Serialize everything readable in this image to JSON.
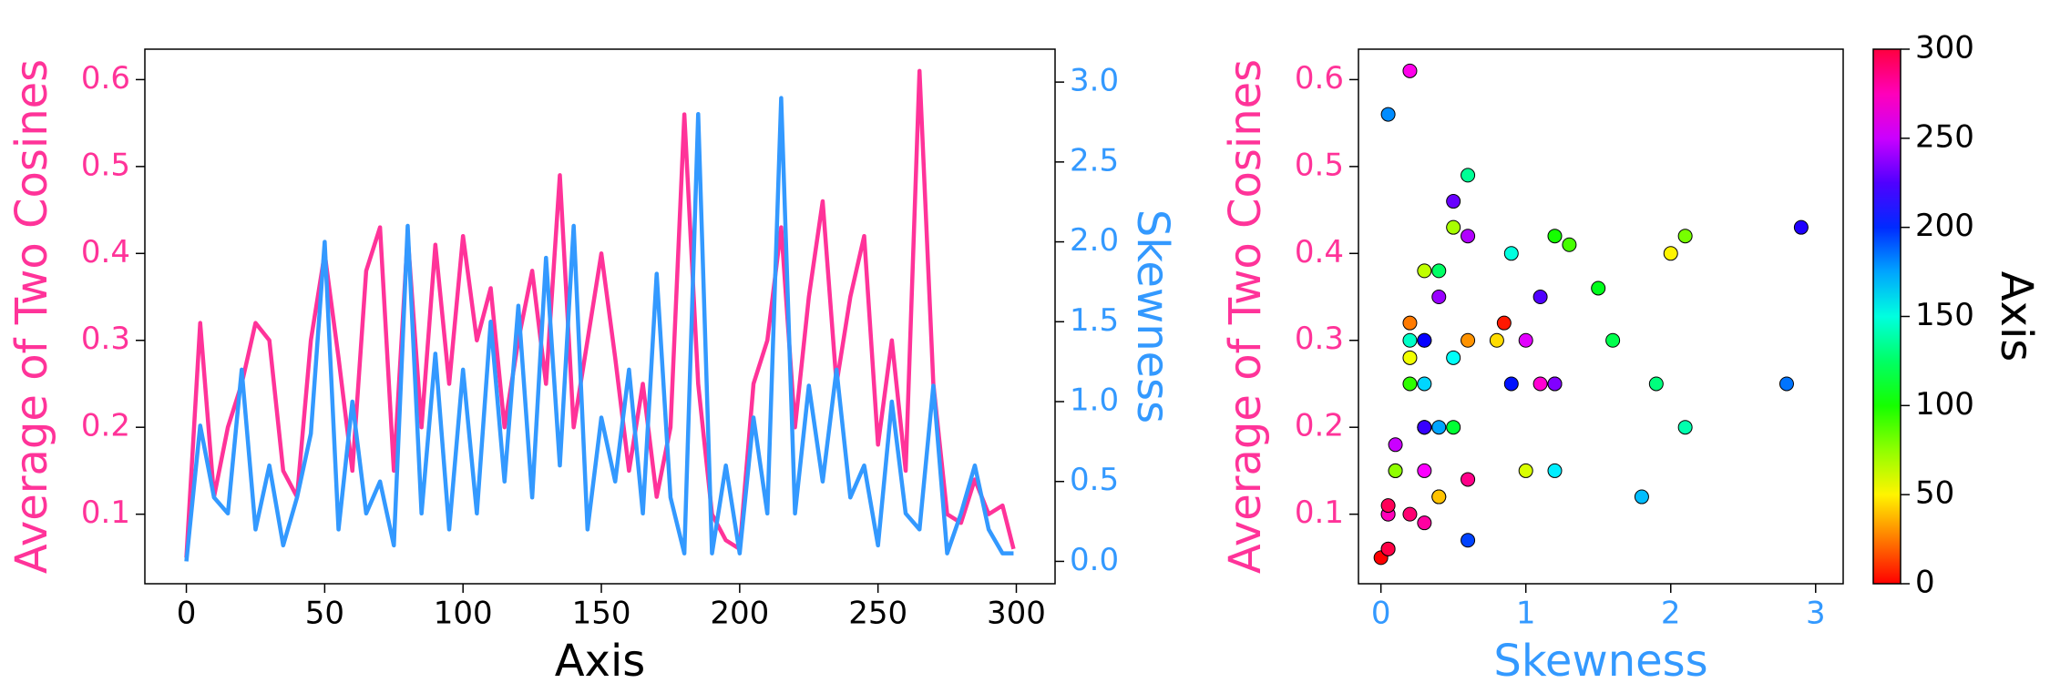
{
  "chart_data": [
    {
      "type": "line",
      "xlabel": "Axis",
      "ylabel": "Average of Two Cosines",
      "y2label": "Skewness",
      "x": [
        0,
        5,
        10,
        15,
        20,
        25,
        30,
        35,
        40,
        45,
        50,
        55,
        60,
        65,
        70,
        75,
        80,
        85,
        90,
        95,
        100,
        105,
        110,
        115,
        120,
        125,
        130,
        135,
        140,
        145,
        150,
        155,
        160,
        165,
        170,
        175,
        180,
        185,
        190,
        195,
        200,
        205,
        210,
        215,
        220,
        225,
        230,
        235,
        240,
        245,
        250,
        255,
        260,
        265,
        270,
        275,
        280,
        285,
        290,
        295,
        299
      ],
      "series": [
        {
          "name": "Average of Two Cosines",
          "color": "#ff3399",
          "axis": "y",
          "values": [
            0.05,
            0.32,
            0.12,
            0.2,
            0.25,
            0.32,
            0.3,
            0.15,
            0.12,
            0.3,
            0.4,
            0.28,
            0.15,
            0.38,
            0.43,
            0.15,
            0.42,
            0.2,
            0.41,
            0.25,
            0.42,
            0.3,
            0.36,
            0.2,
            0.3,
            0.38,
            0.25,
            0.49,
            0.2,
            0.3,
            0.4,
            0.28,
            0.15,
            0.25,
            0.12,
            0.2,
            0.56,
            0.25,
            0.1,
            0.07,
            0.06,
            0.25,
            0.3,
            0.43,
            0.2,
            0.35,
            0.46,
            0.25,
            0.35,
            0.42,
            0.18,
            0.3,
            0.15,
            0.61,
            0.25,
            0.1,
            0.09,
            0.14,
            0.1,
            0.11,
            0.06
          ]
        },
        {
          "name": "Skewness",
          "color": "#3399ff",
          "axis": "y2",
          "values": [
            0.0,
            0.85,
            0.4,
            0.3,
            1.2,
            0.2,
            0.6,
            0.1,
            0.4,
            0.8,
            2.0,
            0.2,
            1.0,
            0.3,
            0.5,
            0.1,
            2.1,
            0.3,
            1.3,
            0.2,
            1.2,
            0.3,
            1.5,
            0.5,
            1.6,
            0.4,
            1.9,
            0.6,
            2.1,
            0.2,
            0.9,
            0.5,
            1.2,
            0.3,
            1.8,
            0.4,
            0.05,
            2.8,
            0.05,
            0.6,
            0.05,
            0.9,
            0.3,
            2.9,
            0.3,
            1.1,
            0.5,
            1.2,
            0.4,
            0.6,
            0.1,
            1.0,
            0.3,
            0.2,
            1.1,
            0.05,
            0.3,
            0.6,
            0.2,
            0.05,
            0.05
          ]
        }
      ],
      "xlim": [
        -15,
        314
      ],
      "xticks": [
        0,
        50,
        100,
        150,
        200,
        250,
        300
      ],
      "ylim": [
        0.02,
        0.635
      ],
      "yticks": [
        0.1,
        0.2,
        0.3,
        0.4,
        0.5,
        0.6
      ],
      "y2lim": [
        -0.14,
        3.206
      ],
      "y2ticks": [
        {
          "value": 0,
          "label": "0.0"
        },
        0.5,
        {
          "value": 1,
          "label": "1.0"
        },
        1.5,
        {
          "value": 2,
          "label": "2.0"
        },
        2.5,
        {
          "value": 3,
          "label": "3.0"
        }
      ]
    },
    {
      "type": "scatter",
      "xlabel": "Skewness",
      "ylabel": "Average of Two Cosines",
      "x": [
        0.0,
        0.85,
        0.4,
        0.3,
        1.2,
        0.2,
        0.6,
        0.1,
        0.4,
        0.8,
        2.0,
        0.2,
        1.0,
        0.3,
        0.5,
        0.1,
        2.1,
        0.3,
        1.3,
        0.2,
        1.2,
        0.3,
        1.5,
        0.5,
        1.6,
        0.4,
        1.9,
        0.6,
        2.1,
        0.2,
        0.9,
        0.5,
        1.2,
        0.3,
        1.8,
        0.4,
        0.05,
        2.8,
        0.05,
        0.6,
        0.05,
        0.9,
        0.3,
        2.9,
        0.3,
        1.1,
        0.5,
        1.2,
        0.4,
        0.6,
        0.1,
        1.0,
        0.3,
        0.2,
        1.1,
        0.05,
        0.3,
        0.6,
        0.2,
        0.05,
        0.05
      ],
      "y": [
        0.05,
        0.32,
        0.12,
        0.2,
        0.25,
        0.32,
        0.3,
        0.15,
        0.12,
        0.3,
        0.4,
        0.28,
        0.15,
        0.38,
        0.43,
        0.15,
        0.42,
        0.2,
        0.41,
        0.25,
        0.42,
        0.3,
        0.36,
        0.2,
        0.3,
        0.38,
        0.25,
        0.49,
        0.2,
        0.3,
        0.4,
        0.28,
        0.15,
        0.25,
        0.12,
        0.2,
        0.56,
        0.25,
        0.1,
        0.07,
        0.06,
        0.25,
        0.3,
        0.43,
        0.2,
        0.35,
        0.46,
        0.25,
        0.35,
        0.42,
        0.18,
        0.3,
        0.15,
        0.61,
        0.25,
        0.1,
        0.09,
        0.14,
        0.1,
        0.11,
        0.06
      ],
      "c": [
        0,
        5,
        10,
        15,
        20,
        25,
        30,
        35,
        40,
        45,
        50,
        55,
        60,
        65,
        70,
        75,
        80,
        85,
        90,
        95,
        100,
        105,
        110,
        115,
        120,
        125,
        130,
        135,
        140,
        145,
        150,
        155,
        160,
        165,
        170,
        175,
        180,
        185,
        190,
        195,
        200,
        205,
        210,
        215,
        220,
        225,
        230,
        235,
        240,
        245,
        250,
        255,
        260,
        265,
        270,
        275,
        280,
        285,
        290,
        295,
        299
      ],
      "colormap": "gist_rainbow",
      "xlim": [
        -0.155,
        3.19
      ],
      "xticks": [
        0,
        1,
        2,
        3
      ],
      "ylim": [
        0.02,
        0.635
      ],
      "yticks": [
        0.1,
        0.2,
        0.3,
        0.4,
        0.5,
        0.6
      ],
      "colorbar": {
        "label": "Axis",
        "lim": [
          0,
          300
        ],
        "ticks": [
          0,
          50,
          100,
          150,
          200,
          250,
          300
        ]
      }
    }
  ]
}
